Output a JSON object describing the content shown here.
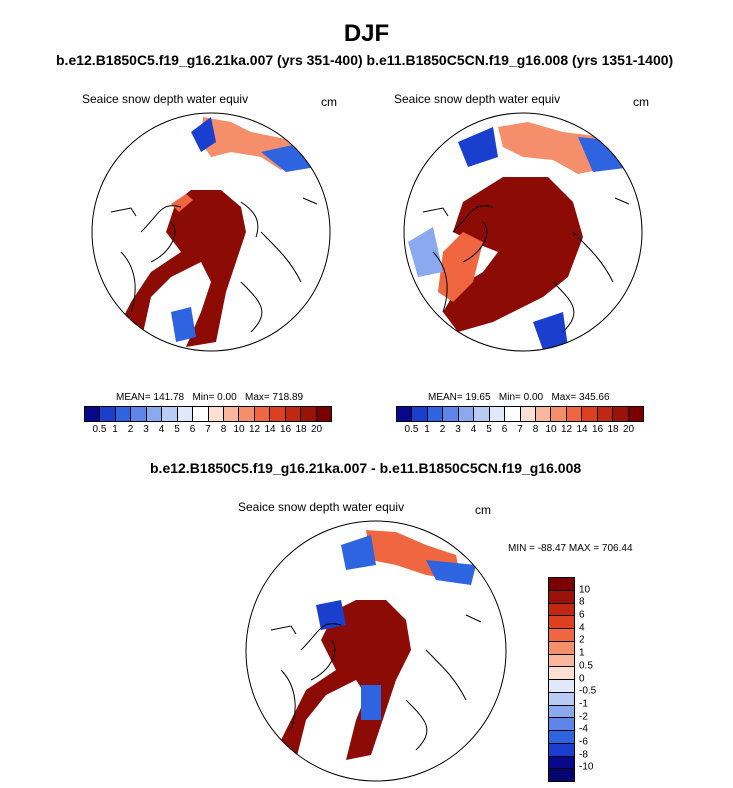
{
  "page_title": "DJF",
  "top_subtitle": "b.e12.B1850C5.f19_g16.21ka.007 (yrs 351-400) b.e11.B1850C5CN.f19_g16.008 (yrs 1351-1400)",
  "diff_subtitle": "b.e12.B1850C5.f19_g16.21ka.007 - b.e11.B1850C5CN.f19_g16.008",
  "panels": [
    {
      "variable": "Seaice snow depth water equiv",
      "units": "cm",
      "stats_mean": "MEAN= 141.78",
      "stats_min": "Min=   0.00",
      "stats_max": "Max= 718.89"
    },
    {
      "variable": "Seaice snow depth water equiv",
      "units": "cm",
      "stats_mean": "MEAN=  19.65",
      "stats_min": "Min=   0.00",
      "stats_max": "Max= 345.66"
    }
  ],
  "diff_panel": {
    "variable": "Seaice snow depth water equiv",
    "units": "cm",
    "minmax": "MIN = -88.47 MAX = 706.44"
  },
  "colorbar_abs": {
    "labels": [
      "0.5",
      "1",
      "2",
      "3",
      "4",
      "5",
      "6",
      "7",
      "8",
      "10",
      "12",
      "14",
      "16",
      "18",
      "20"
    ],
    "colors": [
      "#08088c",
      "#1a3fcf",
      "#2f64e0",
      "#5d86e8",
      "#8aa9ef",
      "#b7cbf5",
      "#e0e8fa",
      "#ffffff",
      "#fde0d2",
      "#f9b79d",
      "#f58f6b",
      "#ef6640",
      "#dd4021",
      "#c02812",
      "#9a1208",
      "#7a0000"
    ]
  },
  "colorbar_diff": {
    "labels": [
      "10",
      "8",
      "6",
      "4",
      "2",
      "1",
      "0.5",
      "0",
      "-0.5",
      "-1",
      "-2",
      "-4",
      "-6",
      "-8",
      "-10"
    ],
    "colors": [
      "#7a0000",
      "#9a1208",
      "#c02812",
      "#dd4021",
      "#ef6640",
      "#f58f6b",
      "#f9b79d",
      "#fde0d2",
      "#e0e8fa",
      "#b7cbf5",
      "#8aa9ef",
      "#5d86e8",
      "#2f64e0",
      "#1a3fcf",
      "#08088c",
      "#050570"
    ]
  }
}
